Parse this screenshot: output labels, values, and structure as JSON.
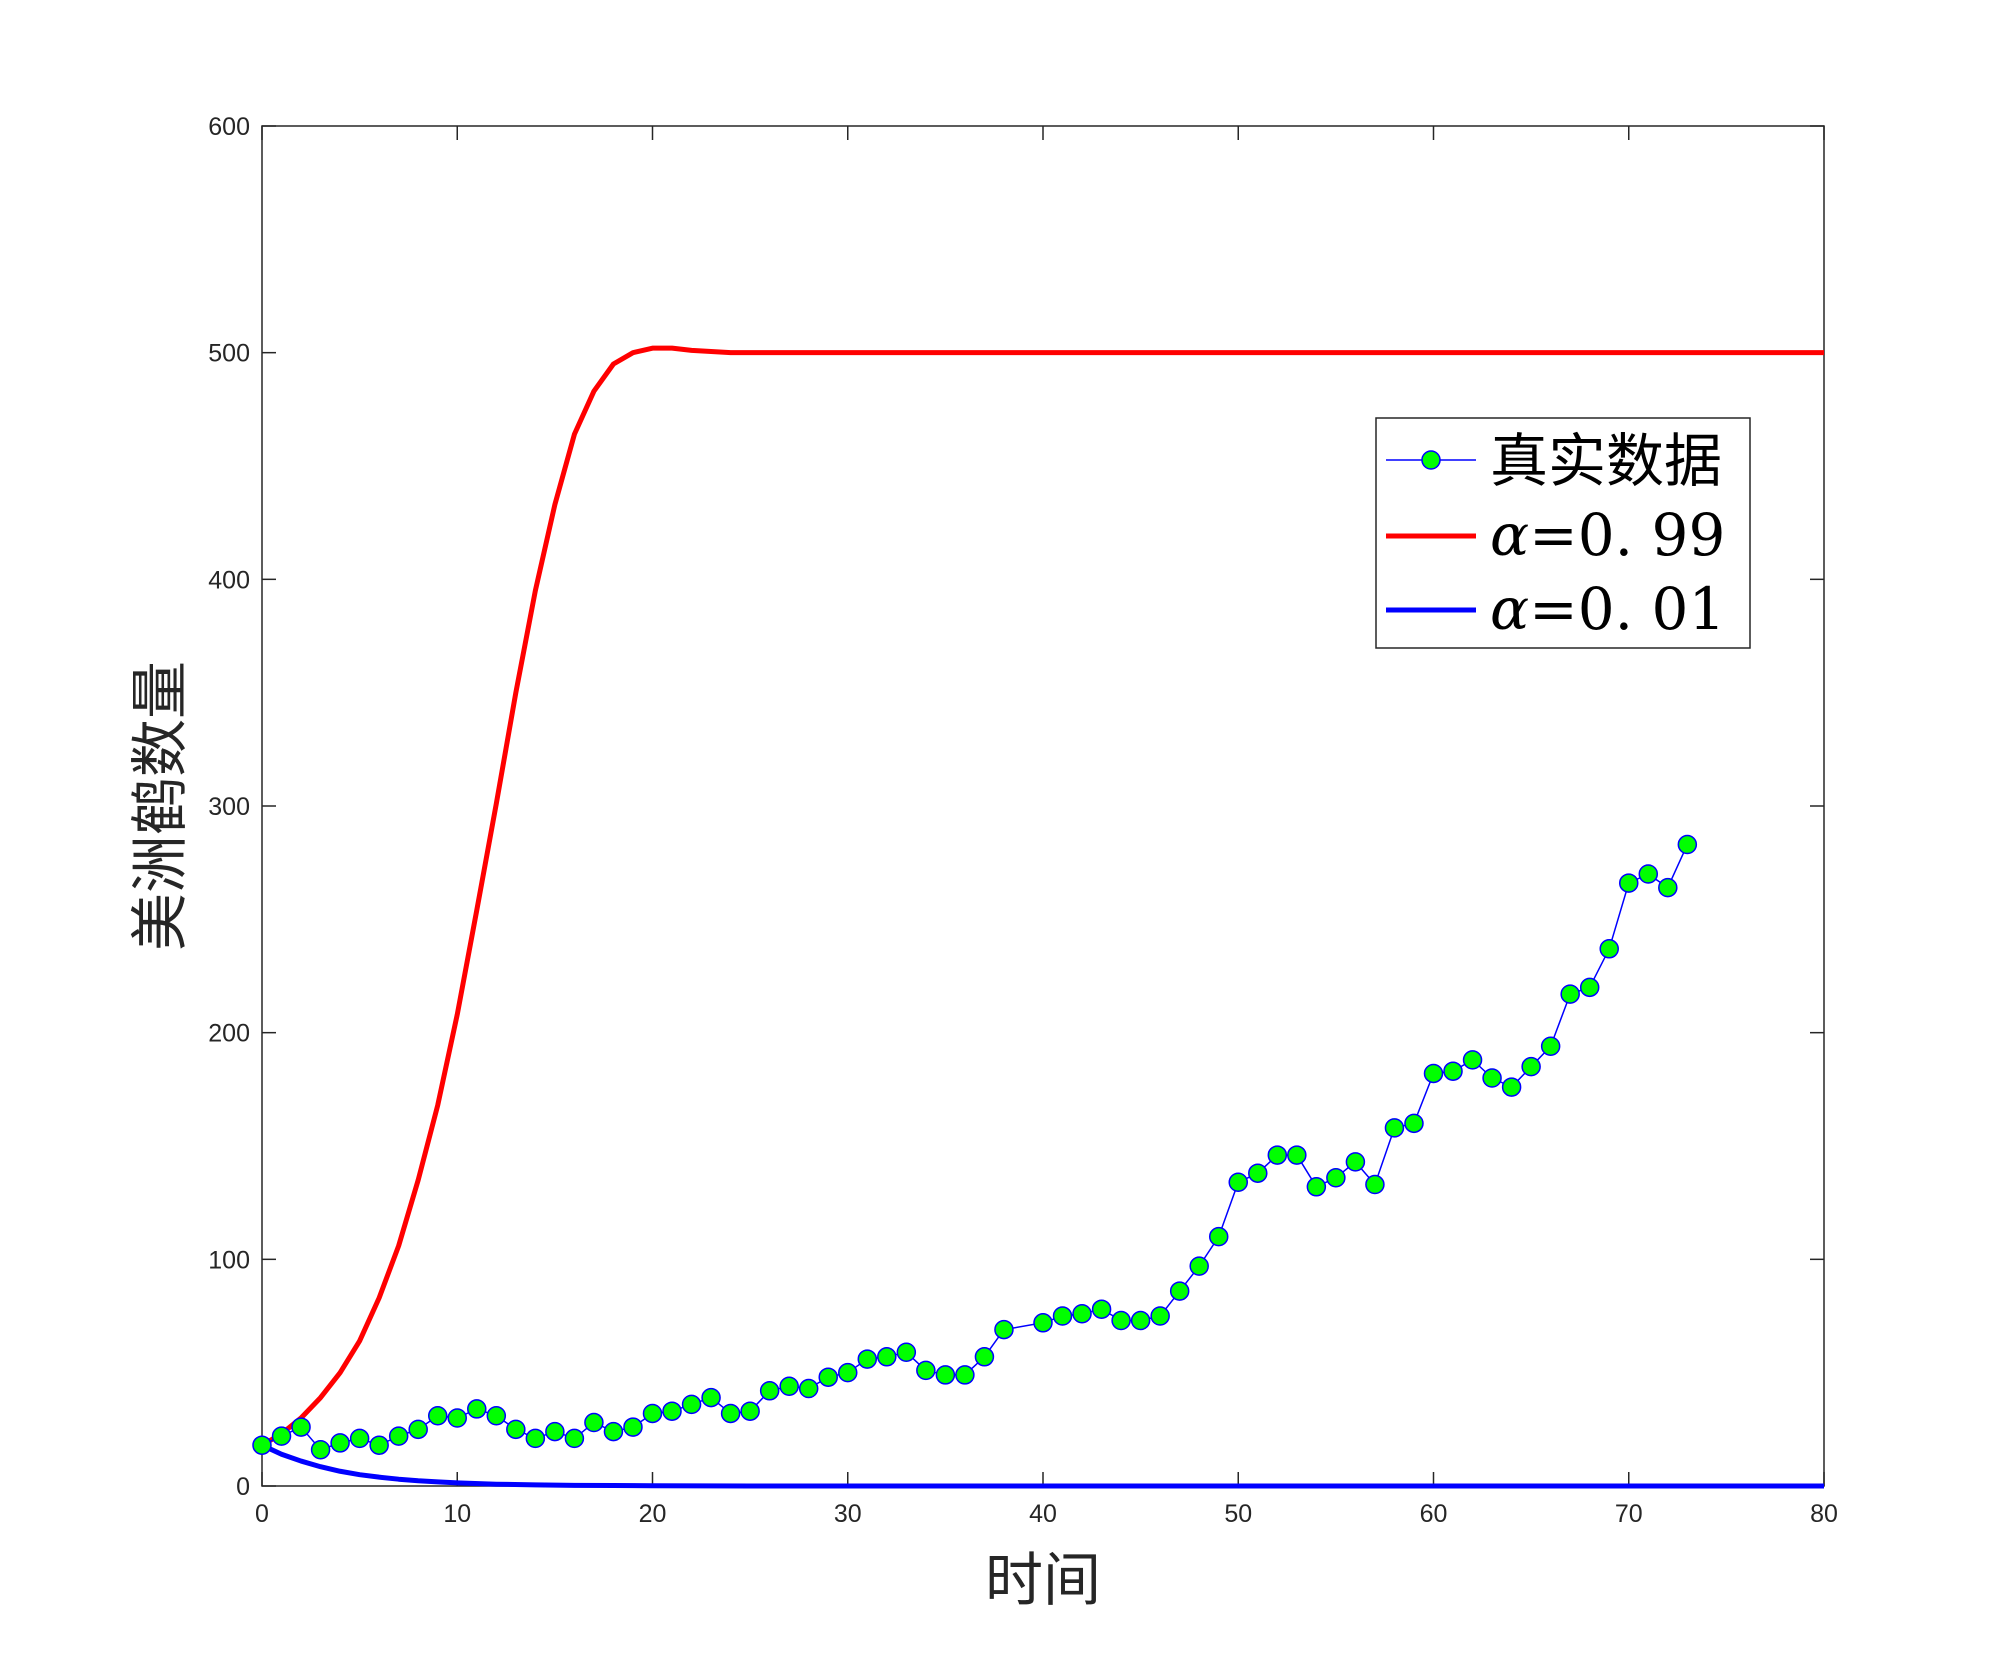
{
  "chart_data": {
    "type": "line",
    "xlabel": "时间",
    "ylabel": "美洲鹤数量",
    "xlim": [
      0,
      80
    ],
    "ylim": [
      0,
      600
    ],
    "xticks": [
      "0",
      "10",
      "20",
      "30",
      "40",
      "50",
      "60",
      "70",
      "80"
    ],
    "yticks": [
      "0",
      "100",
      "200",
      "300",
      "400",
      "500",
      "600"
    ],
    "grid": false,
    "legend_position": "upper-right",
    "legend": [
      {
        "series": 0,
        "label": "真实数据"
      },
      {
        "series": 1,
        "symbol": "α",
        "label": "=0. 99"
      },
      {
        "series": 2,
        "symbol": "α",
        "label": "=0. 01"
      }
    ],
    "series": [
      {
        "name": "真实数据",
        "style": "line-markers",
        "color": "#0000ff",
        "marker_fill": "#00ff00",
        "x": [
          0,
          1,
          2,
          3,
          4,
          5,
          6,
          7,
          8,
          9,
          10,
          11,
          12,
          13,
          14,
          15,
          16,
          17,
          18,
          19,
          20,
          21,
          22,
          23,
          24,
          25,
          26,
          27,
          28,
          29,
          30,
          31,
          32,
          33,
          34,
          35,
          36,
          37,
          38,
          40,
          41,
          42,
          43,
          44,
          45,
          46,
          47,
          48,
          49,
          50,
          51,
          52,
          53,
          54,
          55,
          56,
          57,
          58,
          59,
          60,
          61,
          62,
          63,
          64,
          65,
          66,
          67,
          68,
          69,
          70,
          71,
          72,
          73
        ],
        "y": [
          18,
          22,
          26,
          16,
          19,
          21,
          18,
          22,
          25,
          31,
          30,
          34,
          31,
          25,
          21,
          24,
          21,
          28,
          24,
          26,
          32,
          33,
          36,
          39,
          32,
          33,
          42,
          44,
          43,
          48,
          50,
          56,
          57,
          59,
          51,
          49,
          49,
          57,
          69,
          72,
          75,
          76,
          78,
          73,
          73,
          75,
          86,
          97,
          110,
          134,
          138,
          146,
          146,
          132,
          136,
          143,
          133,
          158,
          160,
          182,
          183,
          188,
          180,
          176,
          185,
          194,
          217,
          220,
          237,
          266,
          270,
          264,
          283
        ]
      },
      {
        "name": "α=0.99",
        "style": "line",
        "color": "#ff0000",
        "x": [
          0,
          1,
          2,
          3,
          4,
          5,
          6,
          7,
          8,
          9,
          10,
          11,
          12,
          13,
          14,
          15,
          16,
          17,
          18,
          19,
          20,
          21,
          22,
          23,
          24,
          25,
          26,
          28,
          30,
          40,
          50,
          60,
          70,
          80
        ],
        "y": [
          18,
          23,
          30,
          39,
          50,
          64,
          83,
          106,
          135,
          168,
          208,
          254,
          301,
          350,
          395,
          433,
          464,
          483,
          495,
          500,
          502,
          502,
          501,
          500.5,
          500,
          500,
          500,
          500,
          500,
          500,
          500,
          500,
          500,
          500
        ]
      },
      {
        "name": "α=0.01",
        "style": "line",
        "color": "#0000ff",
        "x": [
          0,
          1,
          2,
          3,
          4,
          5,
          6,
          7,
          8,
          9,
          10,
          12,
          14,
          16,
          18,
          20,
          25,
          30,
          40,
          50,
          60,
          70,
          80
        ],
        "y": [
          18,
          14,
          11,
          8.5,
          6.5,
          5,
          3.9,
          3,
          2.3,
          1.8,
          1.4,
          0.8,
          0.5,
          0.3,
          0.2,
          0.1,
          0,
          0,
          0,
          0,
          0,
          0,
          0
        ]
      }
    ]
  }
}
